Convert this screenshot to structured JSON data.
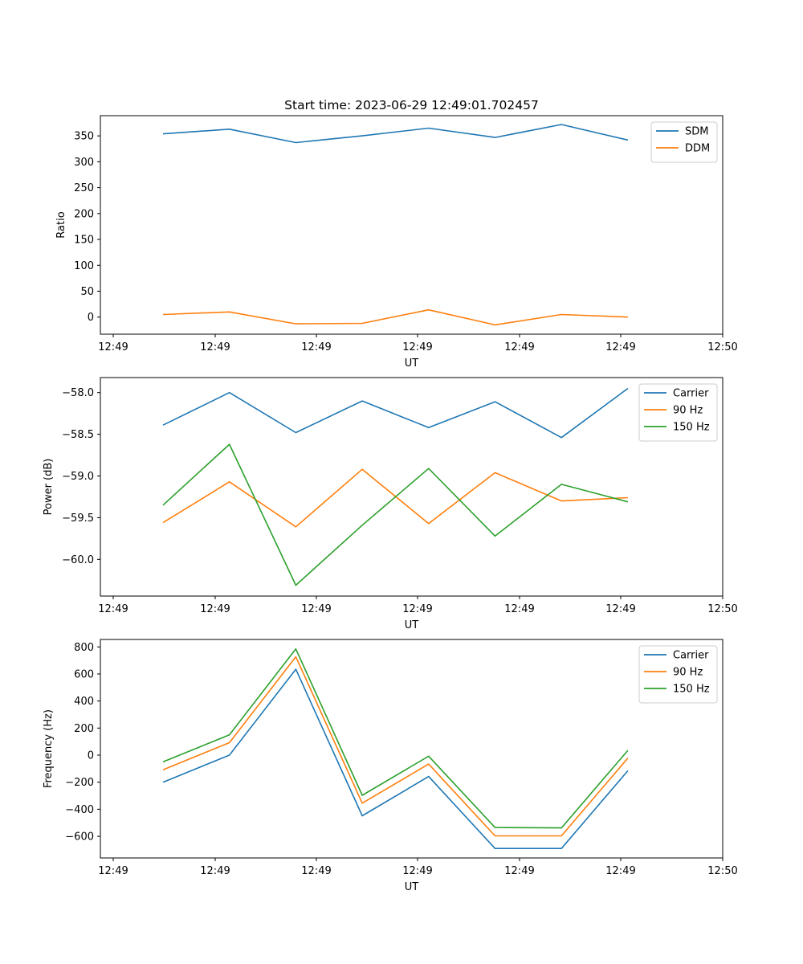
{
  "figure": {
    "title": "Start time: 2023-06-29 12:49:01.702457"
  },
  "chart_data": [
    {
      "type": "line",
      "xlabel": "UT",
      "ylabel": "Ratio",
      "x_tick_labels": [
        "12:49",
        "12:49",
        "12:49",
        "12:49",
        "12:49",
        "12:49",
        "12:49"
      ],
      "x_tick_labels_last": "12:50",
      "n_points": 8,
      "ylim": [
        -33,
        389
      ],
      "yticks": [
        0,
        50,
        100,
        150,
        200,
        250,
        300,
        350
      ],
      "ytick_labels": [
        "0",
        "50",
        "100",
        "150",
        "200",
        "250",
        "300",
        "350"
      ],
      "legend": "top-right",
      "series": [
        {
          "name": "SDM",
          "color": "#1f77b4",
          "values": [
            354,
            363,
            337,
            350,
            365,
            347,
            372,
            342
          ]
        },
        {
          "name": "DDM",
          "color": "#ff7f0e",
          "values": [
            5,
            10,
            -13,
            -12,
            14,
            -15,
            5,
            0
          ]
        }
      ]
    },
    {
      "type": "line",
      "xlabel": "UT",
      "ylabel": "Power (dB)",
      "x_tick_labels": [
        "12:49",
        "12:49",
        "12:49",
        "12:49",
        "12:49",
        "12:49",
        "12:49"
      ],
      "x_tick_labels_last": "12:50",
      "n_points": 8,
      "ylim": [
        -60.44,
        -57.82
      ],
      "yticks": [
        -60.0,
        -59.5,
        -59.0,
        -58.5,
        -58.0
      ],
      "ytick_labels": [
        "−60.0",
        "−59.5",
        "−59.0",
        "−58.5",
        "−58.0"
      ],
      "legend": "top-right",
      "series": [
        {
          "name": "Carrier",
          "color": "#1f77b4",
          "values": [
            -58.39,
            -58.0,
            -58.48,
            -58.1,
            -58.42,
            -58.11,
            -58.54,
            -57.95
          ]
        },
        {
          "name": "90 Hz",
          "color": "#ff7f0e",
          "values": [
            -59.56,
            -59.07,
            -59.61,
            -58.92,
            -59.57,
            -58.96,
            -59.3,
            -59.26
          ]
        },
        {
          "name": "150 Hz",
          "color": "#2ca02c",
          "values": [
            -59.35,
            -58.62,
            -60.31,
            -59.59,
            -58.91,
            -59.72,
            -59.1,
            -59.31
          ]
        }
      ]
    },
    {
      "type": "line",
      "xlabel": "UT",
      "ylabel": "Frequency (Hz)",
      "x_tick_labels": [
        "12:49",
        "12:49",
        "12:49",
        "12:49",
        "12:49",
        "12:49",
        "12:49"
      ],
      "x_tick_labels_last": "12:50",
      "n_points": 8,
      "ylim": [
        -760,
        855
      ],
      "yticks": [
        -600,
        -400,
        -200,
        0,
        200,
        400,
        600,
        800
      ],
      "ytick_labels": [
        "−600",
        "−400",
        "−200",
        "0",
        "200",
        "400",
        "600",
        "800"
      ],
      "legend": "top-right",
      "series": [
        {
          "name": "Carrier",
          "color": "#1f77b4",
          "values": [
            -200,
            0,
            635,
            -448,
            -158,
            -690,
            -690,
            -115
          ]
        },
        {
          "name": "90 Hz",
          "color": "#ff7f0e",
          "values": [
            -108,
            92,
            727,
            -355,
            -66,
            -597,
            -597,
            -22
          ]
        },
        {
          "name": "150 Hz",
          "color": "#2ca02c",
          "values": [
            -50,
            150,
            785,
            -297,
            -8,
            -535,
            -538,
            35
          ]
        }
      ]
    }
  ]
}
